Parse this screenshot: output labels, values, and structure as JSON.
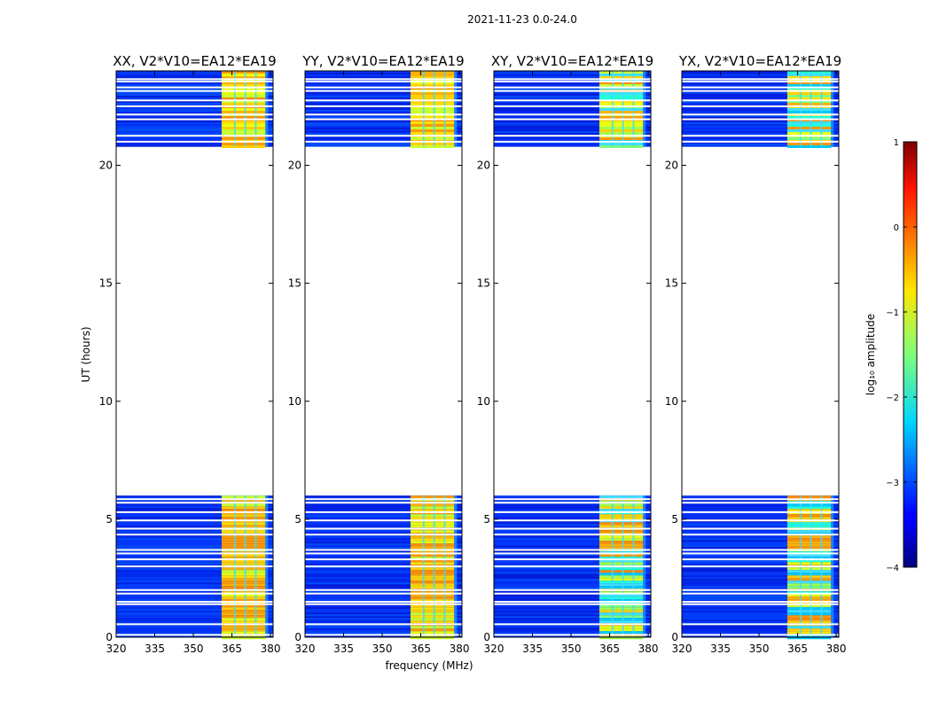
{
  "chart_data": {
    "type": "heatmap",
    "suptitle": "2021-11-23 0.0-24.0",
    "xlabel": "frequency (MHz)",
    "ylabel": "UT (hours)",
    "x_range": [
      320,
      381
    ],
    "y_range": [
      0,
      24
    ],
    "x_ticks": [
      320,
      335,
      350,
      365,
      380
    ],
    "y_ticks": [
      0,
      5,
      10,
      15,
      20
    ],
    "panels": [
      {
        "title": "XX, V2*V10=EA12*EA19",
        "pol": "XX"
      },
      {
        "title": "YY, V2*V10=EA12*EA19",
        "pol": "YY"
      },
      {
        "title": "XY, V2*V10=EA12*EA19",
        "pol": "XY"
      },
      {
        "title": "YX, V2*V10=EA12*EA19",
        "pol": "YX"
      }
    ],
    "data_segments_ut": [
      [
        0.0,
        6.0
      ],
      [
        20.8,
        24.0
      ]
    ],
    "flagged_gap_ut": [
      6.0,
      20.8
    ],
    "rfi_band_mhz": [
      361,
      378
    ],
    "colorbar": {
      "label": "log₁₀ amplitude",
      "range": [
        -4,
        1
      ],
      "ticks": [
        1,
        0,
        -1,
        -2,
        -3,
        -4
      ],
      "tick_labels": [
        "1",
        "0",
        "−1",
        "−2",
        "−3",
        "−4"
      ],
      "colormap": "jet"
    }
  }
}
